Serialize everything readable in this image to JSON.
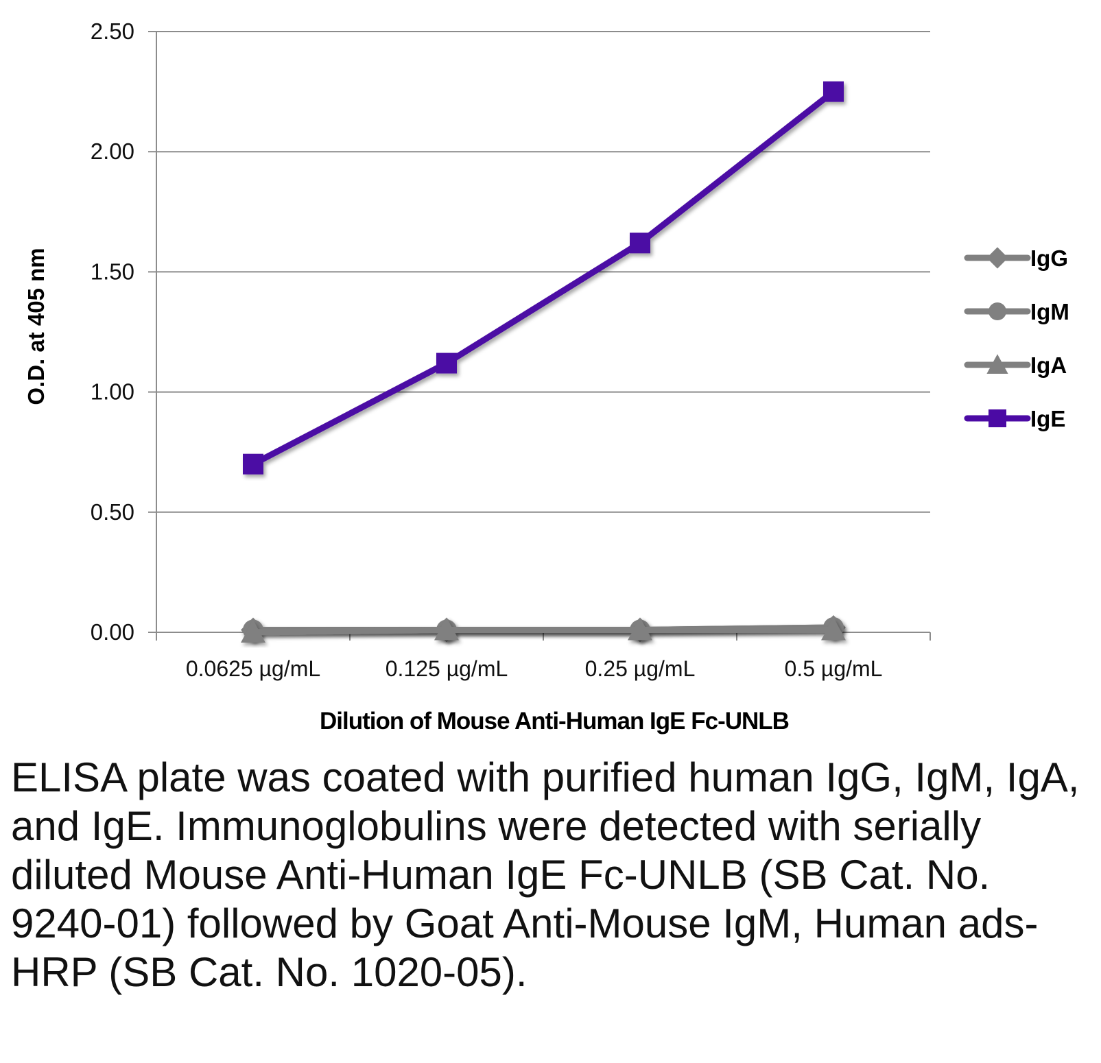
{
  "chart_data": {
    "type": "line",
    "categories": [
      "0.0625 µg/mL",
      "0.125 µg/mL",
      "0.25 µg/mL",
      "0.5 µg/mL"
    ],
    "series": [
      {
        "name": "IgG",
        "values": [
          0.01,
          0.01,
          0.01,
          0.02
        ],
        "color": "#808080",
        "marker": "diamond"
      },
      {
        "name": "IgM",
        "values": [
          0.01,
          0.01,
          0.01,
          0.02
        ],
        "color": "#808080",
        "marker": "circle"
      },
      {
        "name": "IgA",
        "values": [
          0.0,
          0.01,
          0.01,
          0.01
        ],
        "color": "#808080",
        "marker": "triangle"
      },
      {
        "name": "IgE",
        "values": [
          0.7,
          1.12,
          1.62,
          2.25
        ],
        "color": "#4B0AA4",
        "marker": "square"
      }
    ],
    "yticks": [
      "0.00",
      "0.50",
      "1.00",
      "1.50",
      "2.00",
      "2.50"
    ],
    "ylim": [
      0,
      2.5
    ],
    "xlabel": "Dilution of Mouse Anti-Human IgE Fc-UNLB",
    "ylabel": "O.D. at 405 nm",
    "grid": true,
    "legend_position": "right"
  },
  "caption": "ELISA plate was coated with purified human IgG, IgM, IgA, and IgE.  Immunoglobulins were detected with serially diluted Mouse Anti-Human IgE Fc-UNLB (SB Cat. No. 9240-01) followed by Goat Anti-Mouse IgM, Human ads-HRP (SB Cat. No. 1020-05).",
  "colors": {
    "grid": "#8c8c8c",
    "axis": "#8c8c8c",
    "ige": "#4B0AA4",
    "others": "#808080"
  }
}
